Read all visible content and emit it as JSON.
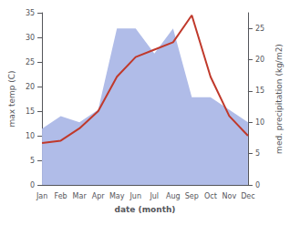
{
  "chart_data": {
    "type": "line",
    "categories": [
      "Jan",
      "Feb",
      "Mar",
      "Apr",
      "May",
      "Jun",
      "Jul",
      "Aug",
      "Sep",
      "Oct",
      "Nov",
      "Dec"
    ],
    "series": [
      {
        "type": "area",
        "axis": "y2",
        "color": "#b0bce8",
        "values": [
          9,
          11,
          10,
          12,
          25,
          25,
          21,
          25,
          14,
          14,
          12,
          10
        ]
      },
      {
        "type": "line",
        "color": "#c0392b",
        "values": [
          8.5,
          9.0,
          11.5,
          15.0,
          22.0,
          26.0,
          27.5,
          29.0,
          34.5,
          22.0,
          14.0,
          10.0
        ]
      }
    ],
    "xlabel": "date (month)",
    "ylabel": "max temp (C)",
    "y2label": "med. precipitation (kg/m2)",
    "ylim": [
      0,
      35
    ],
    "yticks": [
      0,
      5,
      10,
      15,
      20,
      25,
      30,
      35
    ],
    "y2lim": [
      0,
      27.5
    ],
    "y2ticks": [
      0,
      5,
      10,
      15,
      20,
      25
    ],
    "grid": false
  }
}
